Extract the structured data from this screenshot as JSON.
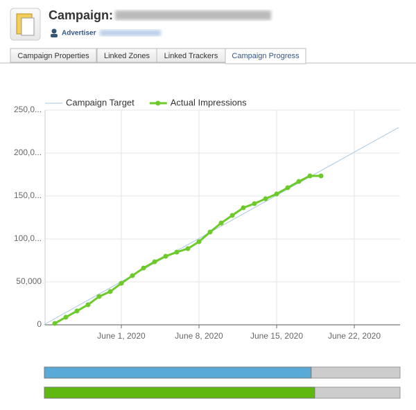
{
  "header": {
    "title": "Campaign:",
    "advertiser_label": "Advertiser"
  },
  "tabs": [
    "Campaign Properties",
    "Linked Zones",
    "Linked Trackers",
    "Campaign Progress"
  ],
  "active_tab": 3,
  "chart_data": {
    "type": "line",
    "xlim": [
      "2020-05-25",
      "2020-06-26"
    ],
    "xticks": [
      {
        "value": "2020-06-01",
        "label": "June 1, 2020"
      },
      {
        "value": "2020-06-08",
        "label": "June 8, 2020"
      },
      {
        "value": "2020-06-15",
        "label": "June 15, 2020"
      },
      {
        "value": "2020-06-22",
        "label": "June 22, 2020"
      }
    ],
    "ylim": [
      0,
      250000
    ],
    "yticks": [
      0,
      {
        "value": 50000,
        "label": "50,000"
      },
      {
        "value": 100000,
        "label": "100,0..."
      },
      {
        "value": 150000,
        "label": "150,0..."
      },
      {
        "value": 200000,
        "label": "200,0..."
      },
      {
        "value": 250000,
        "label": "250,0..."
      }
    ],
    "grid": true,
    "legend": "top-left",
    "series": [
      {
        "name": "Campaign Target",
        "color": "#a9c6de",
        "markers": false,
        "x": [
          "2020-05-25",
          "2020-06-26"
        ],
        "values": [
          0,
          229800
        ]
      },
      {
        "name": "Actual Impressions",
        "color": "#6ccb2a",
        "markers": true,
        "x": [
          "2020-05-26",
          "2020-05-27",
          "2020-05-28",
          "2020-05-29",
          "2020-05-30",
          "2020-05-31",
          "2020-06-01",
          "2020-06-02",
          "2020-06-03",
          "2020-06-04",
          "2020-06-05",
          "2020-06-06",
          "2020-06-07",
          "2020-06-08",
          "2020-06-09",
          "2020-06-10",
          "2020-06-11",
          "2020-06-12",
          "2020-06-13",
          "2020-06-14",
          "2020-06-15",
          "2020-06-16",
          "2020-06-17",
          "2020-06-18",
          "2020-06-19"
        ],
        "values": [
          1600,
          8900,
          16100,
          23400,
          33000,
          38700,
          48400,
          57300,
          66100,
          73400,
          79800,
          84700,
          88700,
          96800,
          108000,
          118500,
          127400,
          136300,
          141100,
          146800,
          152400,
          159700,
          166900,
          173400,
          173400
        ]
      }
    ]
  },
  "progress_bars": [
    {
      "color": "#5aaad8",
      "value": 75
    },
    {
      "color": "#5fb80f",
      "value": 76
    }
  ]
}
